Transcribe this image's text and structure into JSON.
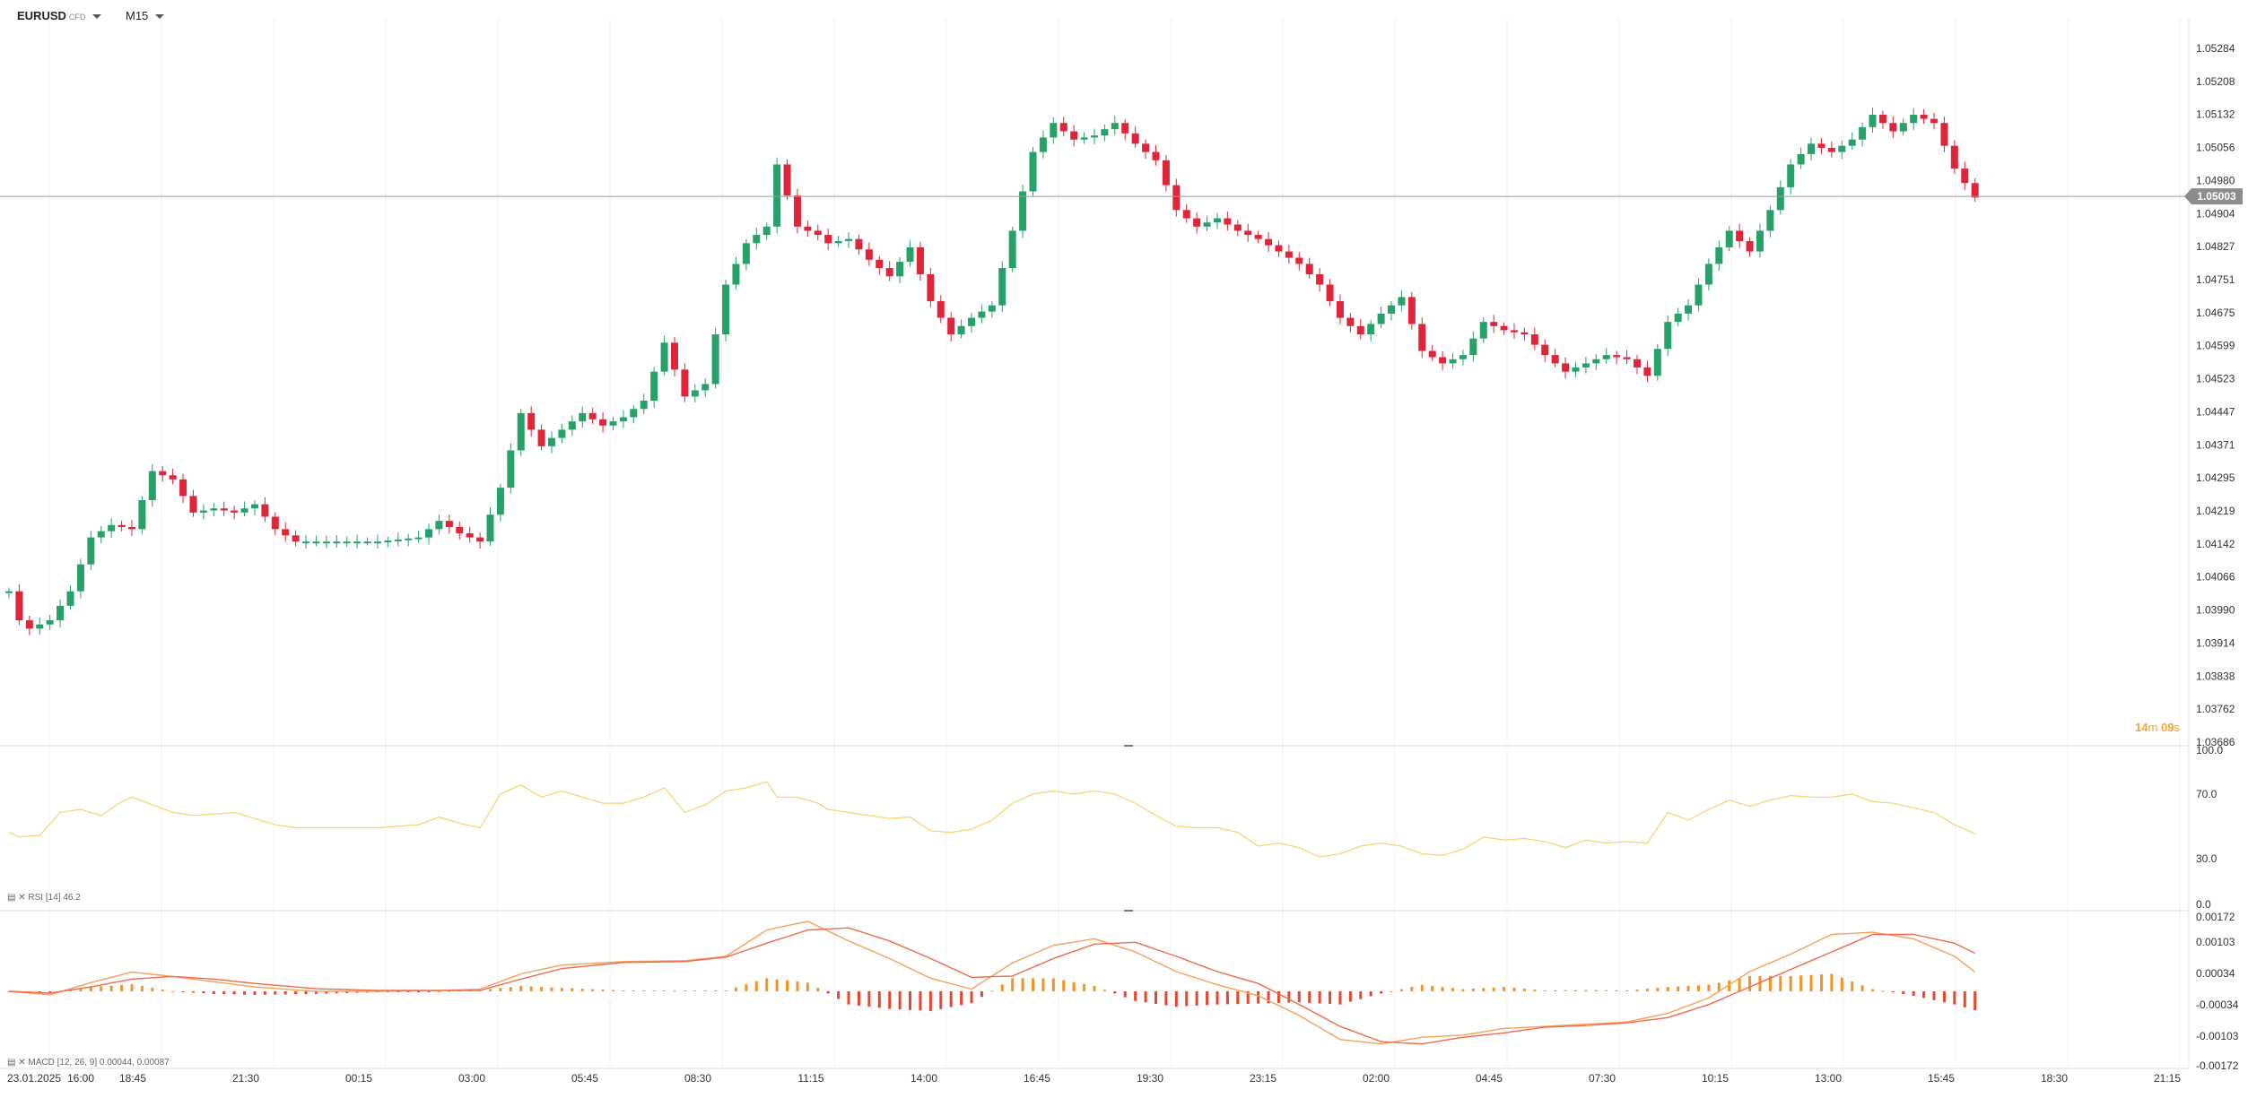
{
  "toolbar": {
    "symbol": "EURUSD",
    "symbol_type": "CFD",
    "timeframe": "M15"
  },
  "colors": {
    "up": "#26a269",
    "down": "#e0243a",
    "rsi": "#f7d36b",
    "macd_line": "#f4a259",
    "signal_line": "#ef6b4c",
    "hist_pos": "#f7931e",
    "hist_neg": "#e8452c",
    "timer": "#f7a23a",
    "grid": "#f0f0f0"
  },
  "price_label": "1.05003",
  "timer": {
    "minutes": "14",
    "m": "m",
    "seconds": "09",
    "s": "s"
  },
  "rsi_legend": "RSI [14] 46.2",
  "macd_legend": "MACD [12, 26, 9] 0.00044, 0.00087",
  "chart_data": [
    {
      "type": "candlestick",
      "title": "EURUSD",
      "ylim": [
        1.03686,
        1.0536
      ],
      "y_ticks": [
        "1.05284",
        "1.05208",
        "1.05132",
        "1.05056",
        "1.04980",
        "1.04904",
        "1.04827",
        "1.04751",
        "1.04675",
        "1.04599",
        "1.04523",
        "1.04447",
        "1.04371",
        "1.04295",
        "1.04219",
        "1.04142",
        "1.04066",
        "1.03990",
        "1.03914",
        "1.03838",
        "1.03762",
        "1.03686"
      ],
      "current_price": 1.05003,
      "x_ticks": [
        "23.01.2025",
        "16:00",
        "18:45",
        "21:30",
        "00:15",
        "03:00",
        "05:45",
        "08:30",
        "11:15",
        "14:00",
        "16:45",
        "19:30",
        "23:15",
        "02:00",
        "04:45",
        "07:30",
        "10:15",
        "13:00",
        "15:45",
        "18:30",
        "21:15"
      ],
      "anchors": [
        [
          0,
          1.0405
        ],
        [
          1,
          1.0398
        ],
        [
          2,
          1.0396
        ],
        [
          4,
          1.0398
        ],
        [
          6,
          1.0405
        ],
        [
          8,
          1.0418
        ],
        [
          10,
          1.0421
        ],
        [
          12,
          1.042
        ],
        [
          14,
          1.0434
        ],
        [
          16,
          1.0432
        ],
        [
          18,
          1.0424
        ],
        [
          20,
          1.0425
        ],
        [
          22,
          1.0424
        ],
        [
          24,
          1.0426
        ],
        [
          26,
          1.042
        ],
        [
          28,
          1.0417
        ],
        [
          32,
          1.0417
        ],
        [
          36,
          1.0417
        ],
        [
          40,
          1.0418
        ],
        [
          42,
          1.0422
        ],
        [
          44,
          1.0419
        ],
        [
          46,
          1.0417
        ],
        [
          48,
          1.043
        ],
        [
          50,
          1.0448
        ],
        [
          52,
          1.044
        ],
        [
          54,
          1.0444
        ],
        [
          56,
          1.0448
        ],
        [
          58,
          1.0445
        ],
        [
          60,
          1.0447
        ],
        [
          62,
          1.0451
        ],
        [
          64,
          1.0465
        ],
        [
          66,
          1.0452
        ],
        [
          68,
          1.0455
        ],
        [
          70,
          1.0479
        ],
        [
          72,
          1.0489
        ],
        [
          74,
          1.0493
        ],
        [
          75,
          1.0508
        ],
        [
          77,
          1.0493
        ],
        [
          79,
          1.0491
        ],
        [
          80,
          1.0489
        ],
        [
          82,
          1.049
        ],
        [
          84,
          1.0485
        ],
        [
          86,
          1.0481
        ],
        [
          88,
          1.0488
        ],
        [
          90,
          1.0475
        ],
        [
          92,
          1.0467
        ],
        [
          94,
          1.0471
        ],
        [
          96,
          1.0474
        ],
        [
          98,
          1.0492
        ],
        [
          100,
          1.0511
        ],
        [
          102,
          1.0518
        ],
        [
          104,
          1.0514
        ],
        [
          106,
          1.0515
        ],
        [
          108,
          1.0518
        ],
        [
          110,
          1.0513
        ],
        [
          112,
          1.0509
        ],
        [
          114,
          1.0497
        ],
        [
          116,
          1.0493
        ],
        [
          118,
          1.0495
        ],
        [
          120,
          1.0492
        ],
        [
          122,
          1.049
        ],
        [
          124,
          1.0487
        ],
        [
          126,
          1.0484
        ],
        [
          128,
          1.0479
        ],
        [
          130,
          1.0471
        ],
        [
          132,
          1.0467
        ],
        [
          134,
          1.0472
        ],
        [
          136,
          1.0476
        ],
        [
          138,
          1.0463
        ],
        [
          140,
          1.046
        ],
        [
          142,
          1.0462
        ],
        [
          144,
          1.047
        ],
        [
          146,
          1.0468
        ],
        [
          148,
          1.0467
        ],
        [
          150,
          1.0462
        ],
        [
          152,
          1.0458
        ],
        [
          154,
          1.046
        ],
        [
          156,
          1.0462
        ],
        [
          158,
          1.0461
        ],
        [
          160,
          1.0457
        ],
        [
          162,
          1.047
        ],
        [
          164,
          1.0474
        ],
        [
          166,
          1.0484
        ],
        [
          168,
          1.0492
        ],
        [
          170,
          1.0487
        ],
        [
          172,
          1.0497
        ],
        [
          174,
          1.0508
        ],
        [
          176,
          1.0513
        ],
        [
          178,
          1.0511
        ],
        [
          180,
          1.0514
        ],
        [
          182,
          1.052
        ],
        [
          184,
          1.0516
        ],
        [
          186,
          1.052
        ],
        [
          188,
          1.0518
        ],
        [
          190,
          1.0507
        ],
        [
          192,
          1.05
        ]
      ]
    },
    {
      "type": "line",
      "title": "RSI [14]",
      "ylim": [
        0,
        100
      ],
      "y_ticks": [
        "100.0",
        "70.0",
        "30.0",
        "0.0"
      ],
      "latest": 46.2,
      "anchors": [
        [
          0,
          47
        ],
        [
          1,
          44
        ],
        [
          3,
          45
        ],
        [
          5,
          60
        ],
        [
          7,
          62
        ],
        [
          9,
          58
        ],
        [
          11,
          67
        ],
        [
          12,
          70
        ],
        [
          14,
          65
        ],
        [
          16,
          60
        ],
        [
          18,
          58
        ],
        [
          20,
          59
        ],
        [
          22,
          60
        ],
        [
          24,
          56
        ],
        [
          26,
          52
        ],
        [
          28,
          50
        ],
        [
          32,
          50
        ],
        [
          36,
          50
        ],
        [
          40,
          52
        ],
        [
          42,
          57
        ],
        [
          44,
          53
        ],
        [
          46,
          50
        ],
        [
          48,
          72
        ],
        [
          50,
          78
        ],
        [
          52,
          70
        ],
        [
          54,
          74
        ],
        [
          56,
          70
        ],
        [
          58,
          66
        ],
        [
          60,
          66
        ],
        [
          62,
          70
        ],
        [
          64,
          76
        ],
        [
          66,
          60
        ],
        [
          68,
          65
        ],
        [
          70,
          74
        ],
        [
          72,
          76
        ],
        [
          74,
          80
        ],
        [
          75,
          70
        ],
        [
          77,
          70
        ],
        [
          79,
          66
        ],
        [
          80,
          62
        ],
        [
          82,
          60
        ],
        [
          84,
          58
        ],
        [
          86,
          56
        ],
        [
          88,
          57
        ],
        [
          90,
          48
        ],
        [
          92,
          47
        ],
        [
          94,
          49
        ],
        [
          96,
          55
        ],
        [
          98,
          66
        ],
        [
          100,
          72
        ],
        [
          102,
          74
        ],
        [
          104,
          72
        ],
        [
          106,
          74
        ],
        [
          108,
          72
        ],
        [
          110,
          66
        ],
        [
          112,
          58
        ],
        [
          114,
          51
        ],
        [
          116,
          50
        ],
        [
          118,
          50
        ],
        [
          120,
          47
        ],
        [
          122,
          38
        ],
        [
          124,
          40
        ],
        [
          126,
          37
        ],
        [
          128,
          31
        ],
        [
          130,
          33
        ],
        [
          132,
          38
        ],
        [
          134,
          40
        ],
        [
          136,
          38
        ],
        [
          138,
          33
        ],
        [
          140,
          32
        ],
        [
          142,
          36
        ],
        [
          144,
          44
        ],
        [
          146,
          42
        ],
        [
          148,
          43
        ],
        [
          150,
          41
        ],
        [
          152,
          37
        ],
        [
          154,
          42
        ],
        [
          156,
          40
        ],
        [
          158,
          41
        ],
        [
          160,
          40
        ],
        [
          162,
          60
        ],
        [
          164,
          55
        ],
        [
          166,
          62
        ],
        [
          168,
          68
        ],
        [
          170,
          64
        ],
        [
          172,
          68
        ],
        [
          174,
          71
        ],
        [
          176,
          70
        ],
        [
          178,
          70
        ],
        [
          180,
          72
        ],
        [
          182,
          67
        ],
        [
          184,
          66
        ],
        [
          186,
          63
        ],
        [
          188,
          60
        ],
        [
          190,
          52
        ],
        [
          192,
          46
        ]
      ]
    },
    {
      "type": "line+bar",
      "title": "MACD [12, 26, 9]",
      "ylim": [
        -0.00172,
        0.00172
      ],
      "y_ticks": [
        "0.00172",
        "0.00103",
        "0.00034",
        "-0.00034",
        "-0.00103",
        "-0.00172"
      ],
      "latest_macd": 0.00044,
      "latest_signal": 0.00087,
      "macd_anchors": [
        [
          0,
          0
        ],
        [
          4,
          -8e-05
        ],
        [
          8,
          0.0002
        ],
        [
          12,
          0.00044
        ],
        [
          16,
          0.00034
        ],
        [
          20,
          0.00022
        ],
        [
          24,
          0.0001
        ],
        [
          30,
          0
        ],
        [
          36,
          0
        ],
        [
          42,
          2e-05
        ],
        [
          46,
          5e-05
        ],
        [
          50,
          0.0004
        ],
        [
          54,
          0.0006
        ],
        [
          60,
          0.00068
        ],
        [
          66,
          0.0007
        ],
        [
          70,
          0.0008
        ],
        [
          74,
          0.0014
        ],
        [
          78,
          0.0016
        ],
        [
          82,
          0.00115
        ],
        [
          86,
          0.00075
        ],
        [
          90,
          0.0003
        ],
        [
          94,
          5e-05
        ],
        [
          98,
          0.00065
        ],
        [
          102,
          0.00105
        ],
        [
          106,
          0.0012
        ],
        [
          110,
          0.0009
        ],
        [
          114,
          0.00045
        ],
        [
          118,
          0.00015
        ],
        [
          122,
          -0.0001
        ],
        [
          126,
          -0.00055
        ],
        [
          130,
          -0.0011
        ],
        [
          134,
          -0.0012
        ],
        [
          138,
          -0.00105
        ],
        [
          142,
          -0.001
        ],
        [
          146,
          -0.00085
        ],
        [
          150,
          -0.0008
        ],
        [
          154,
          -0.00075
        ],
        [
          158,
          -0.0007
        ],
        [
          162,
          -0.0005
        ],
        [
          166,
          -0.00015
        ],
        [
          170,
          0.00045
        ],
        [
          174,
          0.00085
        ],
        [
          178,
          0.0013
        ],
        [
          182,
          0.00135
        ],
        [
          186,
          0.0012
        ],
        [
          190,
          0.0008
        ],
        [
          192,
          0.00044
        ]
      ],
      "signal_anchors": [
        [
          0,
          0
        ],
        [
          4,
          -4e-05
        ],
        [
          8,
          0.0001
        ],
        [
          12,
          0.00028
        ],
        [
          16,
          0.00034
        ],
        [
          20,
          0.00028
        ],
        [
          24,
          0.00018
        ],
        [
          30,
          6e-05
        ],
        [
          36,
          2e-05
        ],
        [
          42,
          2e-05
        ],
        [
          46,
          2e-05
        ],
        [
          50,
          0.00028
        ],
        [
          54,
          0.00052
        ],
        [
          60,
          0.00066
        ],
        [
          66,
          0.00068
        ],
        [
          70,
          0.00078
        ],
        [
          74,
          0.0011
        ],
        [
          78,
          0.0014
        ],
        [
          82,
          0.00145
        ],
        [
          86,
          0.00115
        ],
        [
          90,
          0.00075
        ],
        [
          94,
          0.00032
        ],
        [
          98,
          0.00035
        ],
        [
          102,
          0.00075
        ],
        [
          106,
          0.00108
        ],
        [
          110,
          0.00112
        ],
        [
          114,
          0.0008
        ],
        [
          118,
          0.00045
        ],
        [
          122,
          0.00018
        ],
        [
          126,
          -0.0003
        ],
        [
          130,
          -0.0008
        ],
        [
          134,
          -0.00115
        ],
        [
          138,
          -0.0012
        ],
        [
          142,
          -0.00105
        ],
        [
          146,
          -0.00095
        ],
        [
          150,
          -0.00082
        ],
        [
          154,
          -0.00078
        ],
        [
          158,
          -0.00072
        ],
        [
          162,
          -0.0006
        ],
        [
          166,
          -0.0003
        ],
        [
          170,
          0.0001
        ],
        [
          174,
          0.0005
        ],
        [
          178,
          0.0009
        ],
        [
          182,
          0.0013
        ],
        [
          186,
          0.0013
        ],
        [
          190,
          0.0011
        ],
        [
          192,
          0.00087
        ]
      ]
    }
  ]
}
